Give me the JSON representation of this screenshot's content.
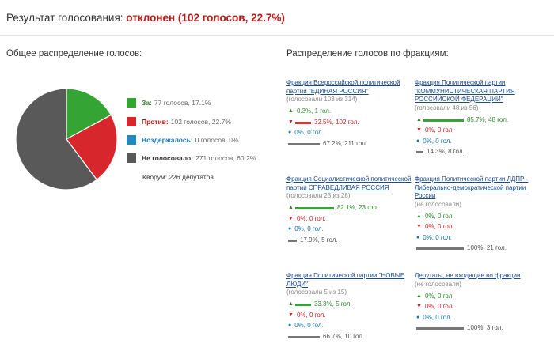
{
  "header": {
    "result_prefix": "Результат голосования: ",
    "result_value": "отклонен (102 голосов, 22.7%)"
  },
  "left": {
    "title": "Общее распределение голосов:",
    "legend": [
      {
        "label": "За:",
        "value": "77 голосов, 17.1%",
        "color": "#34a534",
        "pct": 17.1
      },
      {
        "label": "Против:",
        "value": "102 голосов, 22.7%",
        "color": "#d7262c",
        "pct": 22.7
      },
      {
        "label": "Воздержалось:",
        "value": "0 голосов, 0%",
        "color": "#2288c0",
        "pct": 0
      },
      {
        "label": "Не голосовало:",
        "value": "271 голосов, 60.2%",
        "color": "#595959",
        "pct": 60.2
      }
    ],
    "quorum": "Кворум: 226 депутатов"
  },
  "right": {
    "title": "Распределение голосов по фракциям:",
    "factions": [
      {
        "name": "Фракция Всероссийской политической партии \"ЕДИНАЯ РОССИЯ\"",
        "link": true,
        "sub": "(голосовали 103 из 314)",
        "rows": [
          {
            "kind": "for",
            "text": "0.3%, 1 гол.",
            "pct": 0.3
          },
          {
            "kind": "against",
            "text": "32.5%, 102 гол.",
            "pct": 32.5
          },
          {
            "kind": "abstain",
            "text": "0%, 0 гол.",
            "pct": 0
          },
          {
            "kind": "absent",
            "text": "67.2%, 211 гол.",
            "pct": 67.2
          }
        ]
      },
      {
        "name": "Фракция Политической партии \"КОММУНИСТИЧЕСКАЯ ПАРТИЯ РОССИЙСКОЙ ФЕДЕРАЦИИ\"",
        "link": true,
        "sub": "(голосовали 48 из 56)",
        "rows": [
          {
            "kind": "for",
            "text": "85.7%, 48 гол.",
            "pct": 85.7
          },
          {
            "kind": "against",
            "text": "0%, 0 гол.",
            "pct": 0
          },
          {
            "kind": "abstain",
            "text": "0%, 0 гол.",
            "pct": 0
          },
          {
            "kind": "absent",
            "text": "14.3%, 8 гол.",
            "pct": 14.3
          }
        ]
      },
      {
        "name": "Фракция Социалистической политической партии СПРАВЕДЛИВАЯ РОССИЯ",
        "link": true,
        "sub": "(голосовали 23 из 28)",
        "rows": [
          {
            "kind": "for",
            "text": "82.1%, 23 гол.",
            "pct": 82.1
          },
          {
            "kind": "against",
            "text": "0%, 0 гол.",
            "pct": 0
          },
          {
            "kind": "abstain",
            "text": "0%, 0 гол.",
            "pct": 0
          },
          {
            "kind": "absent",
            "text": "17.9%, 5 гол.",
            "pct": 17.9
          }
        ]
      },
      {
        "name": "Фракция Политической партии ЛДПР - Либерально-демократической партии России",
        "link": true,
        "sub": "(не голосовали)",
        "rows": [
          {
            "kind": "for",
            "text": "0%, 0 гол.",
            "pct": 0
          },
          {
            "kind": "against",
            "text": "0%, 0 гол.",
            "pct": 0
          },
          {
            "kind": "abstain",
            "text": "0%, 0 гол.",
            "pct": 0
          },
          {
            "kind": "absent",
            "text": "100%, 21 гол.",
            "pct": 100
          }
        ]
      },
      {
        "name": "Фракция Политической партии \"НОВЫЕ ЛЮДИ\"",
        "link": true,
        "sub": "(голосовали 5 из 15)",
        "rows": [
          {
            "kind": "for",
            "text": "33.3%, 5 гол.",
            "pct": 33.3
          },
          {
            "kind": "against",
            "text": "0%, 0 гол.",
            "pct": 0
          },
          {
            "kind": "abstain",
            "text": "0%, 0 гол.",
            "pct": 0
          },
          {
            "kind": "absent",
            "text": "66.7%, 10 гол.",
            "pct": 66.7
          }
        ]
      },
      {
        "name": "Депутаты, не входящие во фракции",
        "link": true,
        "sub": "(не голосовали)",
        "rows": [
          {
            "kind": "for",
            "text": "0%, 0 гол.",
            "pct": 0
          },
          {
            "kind": "against",
            "text": "0%, 0 гол.",
            "pct": 0
          },
          {
            "kind": "abstain",
            "text": "0%, 0 гол.",
            "pct": 0
          },
          {
            "kind": "absent",
            "text": "100%, 3 гол.",
            "pct": 100
          }
        ]
      }
    ]
  }
}
